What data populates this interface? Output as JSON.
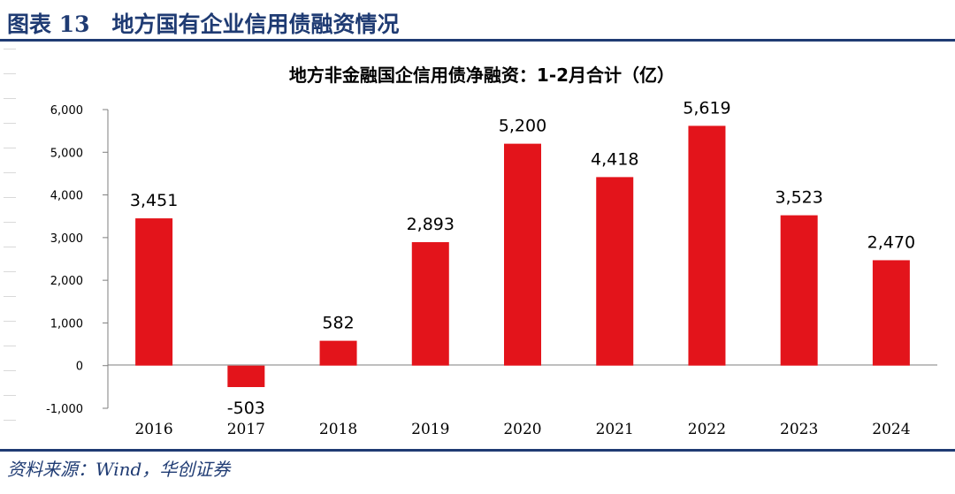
{
  "figure": {
    "title": "图表 13　地方国有企业信用债融资情况",
    "source": "资料来源：Wind，华创证券"
  },
  "colors": {
    "bar": "#e3141b",
    "brand": "#1f3b73",
    "axis": "#7f7f7f"
  },
  "chart_data": {
    "type": "bar",
    "title": "地方非金融国企信用债净融资：1-2月合计（亿）",
    "categories": [
      "2016",
      "2017",
      "2018",
      "2019",
      "2020",
      "2021",
      "2022",
      "2023",
      "2024"
    ],
    "values": [
      3451,
      -503,
      582,
      2893,
      5200,
      4418,
      5619,
      3523,
      2470
    ],
    "value_labels": [
      "3,451",
      "-503",
      "582",
      "2,893",
      "5,200",
      "4,418",
      "5,619",
      "3,523",
      "2,470"
    ],
    "ylim": [
      -1000,
      6000
    ],
    "yticks": [
      -1000,
      0,
      1000,
      2000,
      3000,
      4000,
      5000,
      6000
    ],
    "ytick_labels": [
      "-1,000",
      "0",
      "1,000",
      "2,000",
      "3,000",
      "4,000",
      "5,000",
      "6,000"
    ],
    "xlabel": "",
    "ylabel": "",
    "grid": false,
    "legend": "none"
  }
}
